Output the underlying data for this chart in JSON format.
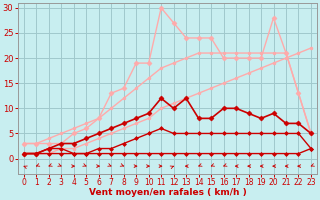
{
  "background_color": "#c8eef0",
  "grid_color": "#a0c8cc",
  "xlabel": "Vent moyen/en rafales ( km/h )",
  "xlim": [
    -0.5,
    23.5
  ],
  "ylim": [
    0,
    31
  ],
  "yticks": [
    0,
    5,
    10,
    15,
    20,
    25,
    30
  ],
  "xticks": [
    0,
    1,
    2,
    3,
    4,
    5,
    6,
    7,
    8,
    9,
    10,
    11,
    12,
    13,
    14,
    15,
    16,
    17,
    18,
    19,
    20,
    21,
    22,
    23
  ],
  "series": [
    {
      "x": [
        0,
        1,
        2,
        3,
        4,
        5,
        6,
        7,
        8,
        9,
        10,
        11,
        12,
        13,
        14,
        15,
        16,
        17,
        18,
        19,
        20,
        21,
        22,
        23
      ],
      "y": [
        1,
        1,
        1,
        2,
        2,
        3,
        4,
        5,
        6,
        7,
        8,
        10,
        11,
        12,
        13,
        14,
        15,
        16,
        17,
        18,
        19,
        20,
        21,
        22
      ],
      "color": "#ffaaaa",
      "lw": 1.0,
      "marker": "o",
      "ms": 2.0
    },
    {
      "x": [
        0,
        1,
        2,
        3,
        4,
        5,
        6,
        7,
        8,
        9,
        10,
        11,
        12,
        13,
        14,
        15,
        16,
        17,
        18,
        19,
        20,
        21,
        22,
        23
      ],
      "y": [
        3,
        3,
        4,
        5,
        6,
        7,
        8,
        10,
        12,
        14,
        16,
        18,
        19,
        20,
        21,
        21,
        21,
        21,
        21,
        21,
        21,
        21,
        13,
        5
      ],
      "color": "#ffaaaa",
      "lw": 1.0,
      "marker": "o",
      "ms": 2.0
    },
    {
      "x": [
        0,
        1,
        2,
        3,
        4,
        5,
        6,
        7,
        8,
        9,
        10,
        11,
        12,
        13,
        14,
        15,
        16,
        17,
        18,
        19,
        20,
        21,
        22,
        23
      ],
      "y": [
        3,
        3,
        3,
        3,
        5,
        6,
        8,
        13,
        14,
        19,
        19,
        30,
        27,
        24,
        24,
        24,
        20,
        20,
        20,
        20,
        28,
        21,
        13,
        5
      ],
      "color": "#ffaaaa",
      "lw": 1.0,
      "marker": "D",
      "ms": 2.5
    },
    {
      "x": [
        0,
        1,
        2,
        3,
        4,
        5,
        6,
        7,
        8,
        9,
        10,
        11,
        12,
        13,
        14,
        15,
        16,
        17,
        18,
        19,
        20,
        21,
        22,
        23
      ],
      "y": [
        1,
        1,
        1,
        1,
        1,
        1,
        1,
        1,
        1,
        1,
        1,
        1,
        1,
        1,
        1,
        1,
        1,
        1,
        1,
        1,
        1,
        1,
        1,
        2
      ],
      "color": "#cc0000",
      "lw": 1.0,
      "marker": "D",
      "ms": 2.0
    },
    {
      "x": [
        0,
        1,
        2,
        3,
        4,
        5,
        6,
        7,
        8,
        9,
        10,
        11,
        12,
        13,
        14,
        15,
        16,
        17,
        18,
        19,
        20,
        21,
        22,
        23
      ],
      "y": [
        1,
        1,
        2,
        2,
        1,
        1,
        2,
        2,
        3,
        4,
        5,
        6,
        5,
        5,
        5,
        5,
        5,
        5,
        5,
        5,
        5,
        5,
        5,
        2
      ],
      "color": "#cc0000",
      "lw": 1.0,
      "marker": "D",
      "ms": 2.0
    },
    {
      "x": [
        0,
        1,
        2,
        3,
        4,
        5,
        6,
        7,
        8,
        9,
        10,
        11,
        12,
        13,
        14,
        15,
        16,
        17,
        18,
        19,
        20,
        21,
        22,
        23
      ],
      "y": [
        1,
        1,
        2,
        3,
        3,
        4,
        5,
        6,
        7,
        8,
        9,
        12,
        10,
        12,
        8,
        8,
        10,
        10,
        9,
        8,
        9,
        7,
        7,
        5
      ],
      "color": "#cc0000",
      "lw": 1.2,
      "marker": "D",
      "ms": 2.5
    }
  ],
  "arrows": {
    "x": [
      0,
      1,
      2,
      3,
      4,
      5,
      6,
      7,
      8,
      9,
      10,
      11,
      12,
      13,
      14,
      15,
      16,
      17,
      18,
      19,
      20,
      21,
      22,
      23
    ],
    "dirs": [
      225,
      315,
      315,
      45,
      90,
      45,
      90,
      45,
      45,
      90,
      90,
      90,
      135,
      270,
      315,
      315,
      315,
      270,
      270,
      270,
      270,
      270,
      270,
      315
    ]
  }
}
